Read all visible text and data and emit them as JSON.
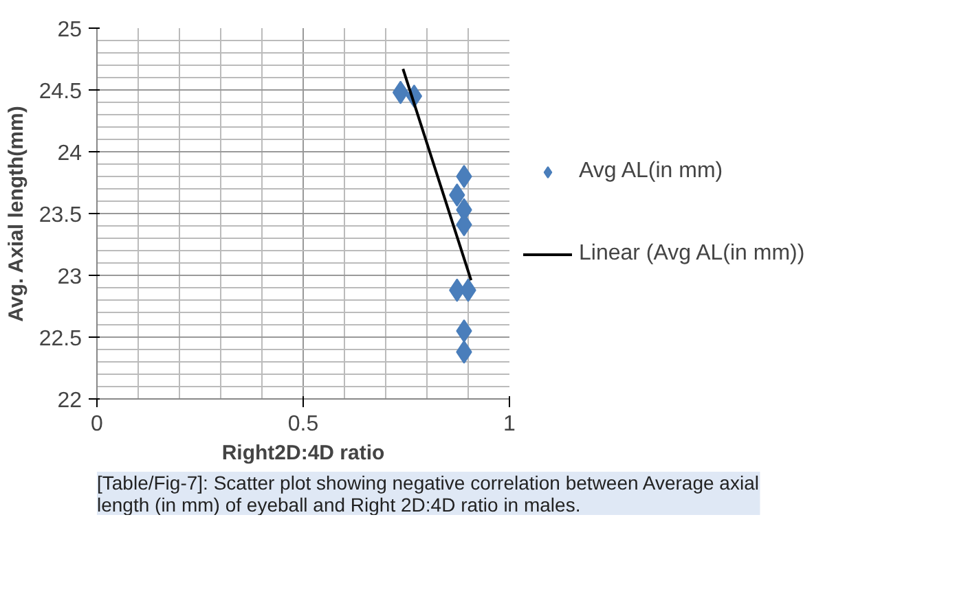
{
  "chart_data": {
    "type": "scatter",
    "xlabel": "Right2D:4D ratio",
    "ylabel": "Avg. Axial length(mm)",
    "xlim": [
      0,
      1
    ],
    "ylim": [
      22,
      25
    ],
    "xticks": [
      0,
      0.5,
      1
    ],
    "yticks": [
      22,
      22.5,
      23,
      23.5,
      24,
      24.5,
      25
    ],
    "grid": true,
    "legend": "right",
    "marker": "diamond",
    "series": [
      {
        "name": "Avg AL(in mm)",
        "color": "#4a7ebb",
        "x": [
          0.736,
          0.769,
          0.89,
          0.873,
          0.89,
          0.89,
          0.873,
          0.9,
          0.89,
          0.89
        ],
        "values": [
          24.48,
          24.45,
          23.8,
          23.65,
          23.53,
          23.41,
          22.88,
          22.88,
          22.55,
          22.38
        ]
      },
      {
        "name": "Linear (Avg AL(in mm))",
        "type": "line",
        "color": "#000000",
        "x": [
          0.742,
          0.907
        ],
        "values": [
          24.67,
          22.96
        ],
        "marker": "none",
        "line_style": "solid"
      }
    ],
    "annotations": [
      "[Table/Fig-7]: Scatter plot showing negative correlation between Average axial length (in mm) of eyeball and Right 2D:4D ratio in males."
    ]
  }
}
